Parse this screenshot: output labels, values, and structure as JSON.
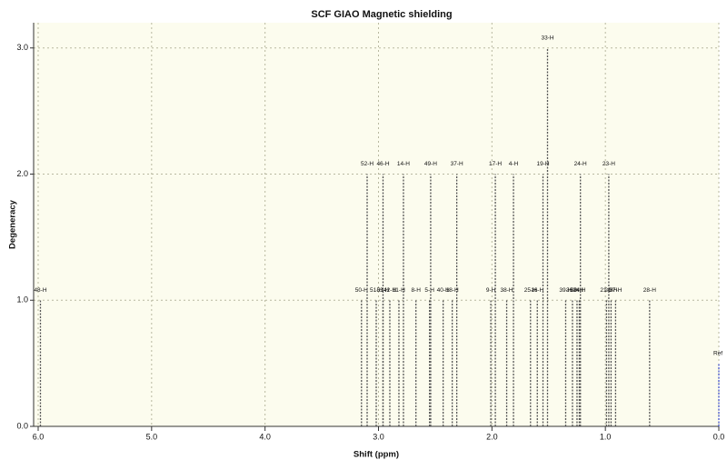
{
  "chart_data": {
    "type": "stick",
    "title": "SCF GIAO Magnetic shielding",
    "x_label": "Shift (ppm)",
    "y_label": "Degeneracy",
    "xlim": [
      6.04,
      0.0
    ],
    "ylim": [
      0,
      3.2
    ],
    "xticks": [
      {
        "value": 6,
        "label": "6.0"
      },
      {
        "value": 5,
        "label": "5.0"
      },
      {
        "value": 4,
        "label": "4.0"
      },
      {
        "value": 3,
        "label": "3.0"
      },
      {
        "value": 2,
        "label": "2.0"
      },
      {
        "value": 1,
        "label": "1.0"
      },
      {
        "value": 0,
        "label": "0.0"
      }
    ],
    "yticks": [
      {
        "value": 0,
        "label": "0.0"
      },
      {
        "value": 1,
        "label": "1.0"
      },
      {
        "value": 2,
        "label": "2.0"
      },
      {
        "value": 3,
        "label": "3.0"
      }
    ],
    "grid": true,
    "color": "#555555",
    "peaks": {
      "x": [
        5.98,
        3.15,
        3.1,
        3.02,
        2.96,
        2.96,
        2.9,
        2.82,
        2.78,
        2.67,
        2.55,
        2.54,
        2.43,
        2.35,
        2.31,
        2.01,
        1.97,
        1.87,
        1.81,
        1.66,
        1.6,
        1.55,
        1.51,
        1.35,
        1.29,
        1.25,
        1.22,
        1.23,
        0.99,
        0.97,
        0.95,
        0.91,
        0.61
      ],
      "values": [
        1,
        1,
        2,
        1,
        1,
        2,
        1,
        1,
        2,
        1,
        1,
        2,
        1,
        1,
        2,
        1,
        2,
        1,
        2,
        1,
        1,
        2,
        3,
        1,
        1,
        1,
        2,
        1,
        1,
        2,
        1,
        1,
        1
      ],
      "labels": [
        "48-H",
        "50-H",
        "52-H",
        "51-H",
        "53-H",
        "46-H",
        "42-H",
        "11-H",
        "14-H",
        "8-H",
        "5-H",
        "49-H",
        "40-H",
        "18-H",
        "37-H",
        "9-H",
        "17-H",
        "38-H",
        "4-H",
        "25-H",
        "16-H",
        "19-H",
        "33-H",
        "39-H",
        "36-H",
        "30-H",
        "24-H",
        "34-H",
        "21-H",
        "23-H",
        "20-H",
        "27-H",
        "28-H"
      ]
    },
    "reference": {
      "x": 0.0,
      "value": 0.5,
      "label": "Ref",
      "color": "#4455cc"
    }
  }
}
